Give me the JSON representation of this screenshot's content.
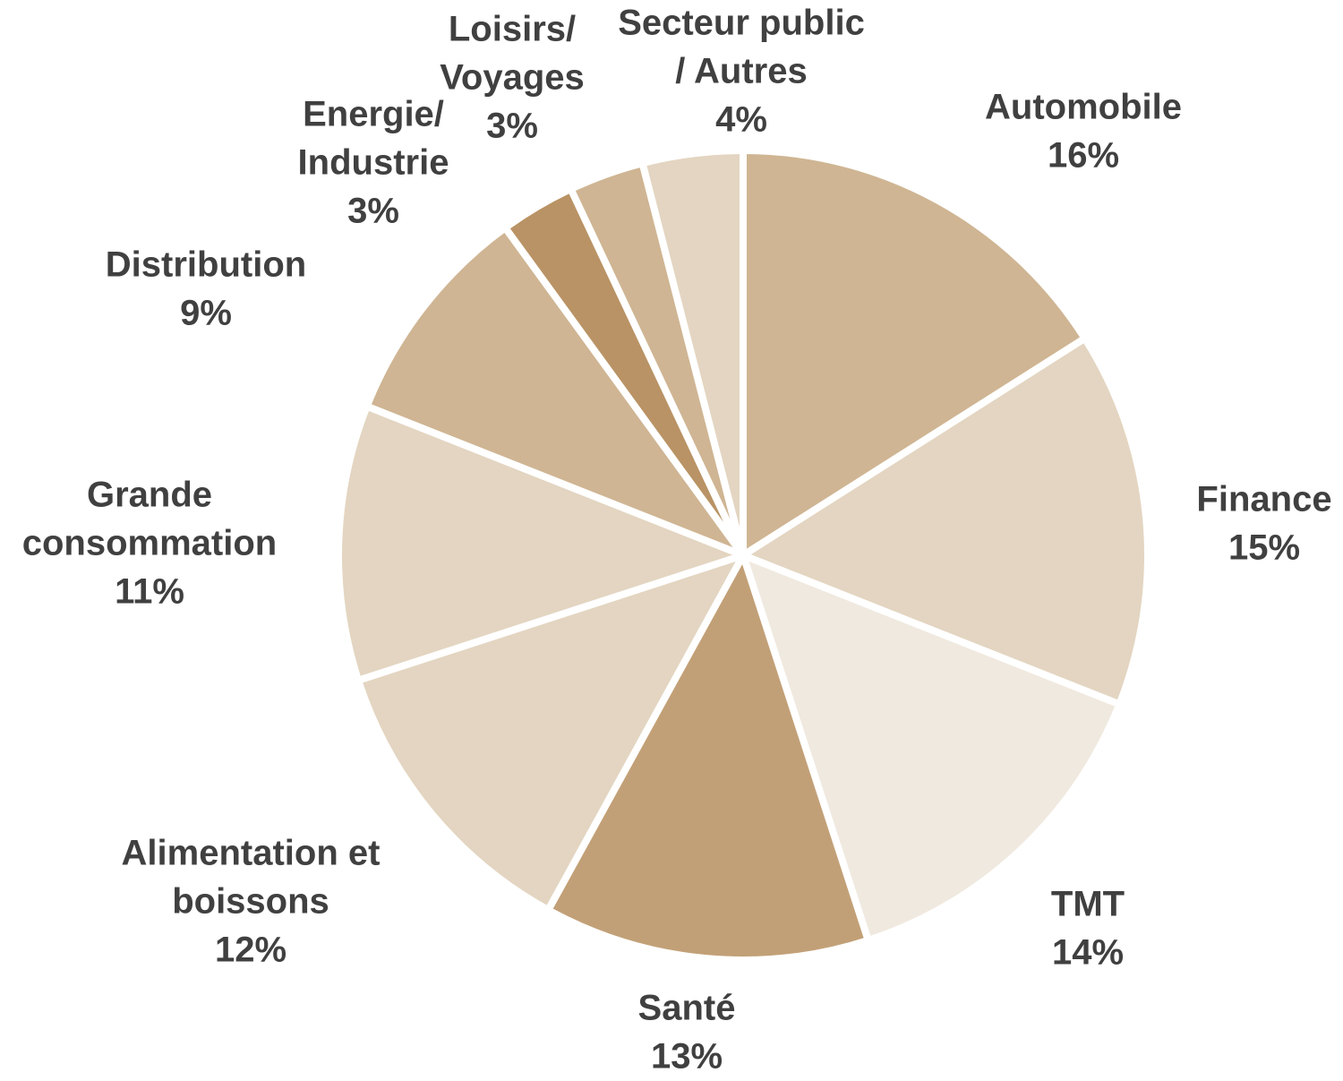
{
  "chart_data": {
    "type": "pie",
    "categories": [
      [
        "Automobile"
      ],
      [
        "Finance"
      ],
      [
        "TMT"
      ],
      [
        "Santé"
      ],
      [
        "Alimentation et",
        "boissons"
      ],
      [
        "Grande",
        "consommation"
      ],
      [
        "Distribution"
      ],
      [
        "Energie/",
        "Industrie"
      ],
      [
        "Loisirs/",
        "Voyages"
      ],
      [
        "Secteur public",
        "/ Autres"
      ]
    ],
    "values": [
      16,
      15,
      14,
      13,
      12,
      11,
      9,
      3,
      3,
      4
    ],
    "value_labels": [
      "16%",
      "15%",
      "14%",
      "13%",
      "12%",
      "11%",
      "9%",
      "3%",
      "3%",
      "4%"
    ],
    "colors": [
      "#cfb593",
      "#e3d5c1",
      "#f0e9df",
      "#c2a077",
      "#e3d5c1",
      "#e3d5c1",
      "#cfb593",
      "#b99365",
      "#cfb593",
      "#e3d5c1"
    ]
  }
}
